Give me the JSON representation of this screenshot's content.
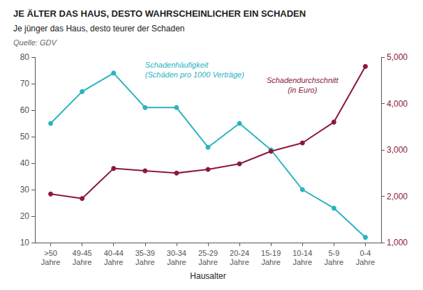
{
  "chart_data": {
    "type": "line",
    "title": "JE ÄLTER DAS HAUS, DESTO WAHRSCHEINLICHER EIN SCHADEN",
    "subtitle": "Je jünger das Haus, desto teurer der Schaden",
    "source": "Quelle: GDV",
    "xlabel": "Hausalter",
    "categories": [
      ">50\nJahre",
      "49-45\nJahre",
      "40-44\nJahre",
      "35-39\nJahre",
      "30-34\nJahre",
      "25-29\nJahre",
      "20-24\nJahre",
      "15-19\nJahre",
      "10-14\nJahre",
      "5-9\nJahre",
      "0-4\nJahre"
    ],
    "series": [
      {
        "name": "Schadenhäufigkeit\n(Schäden pro 1000 Verträge)",
        "color": "#2ab3c0",
        "marker": "circle",
        "values": [
          55,
          67,
          74,
          61,
          61,
          46,
          55,
          45,
          30,
          23,
          12
        ]
      },
      {
        "name": "Schadendurchschnitt\n(in Euro)",
        "color": "#8b1a38",
        "marker": "circle",
        "axis": "y2",
        "values": [
          2050,
          1950,
          2600,
          2550,
          2500,
          2580,
          2700,
          2970,
          3150,
          3600,
          4800
        ]
      }
    ],
    "ylim": [
      10,
      80
    ],
    "yticks": [
      10,
      20,
      30,
      40,
      50,
      60,
      70,
      80
    ],
    "y2lim": [
      1000,
      5000
    ],
    "y2ticks": [
      1000,
      2000,
      3000,
      4000,
      5000
    ],
    "grid": false
  }
}
